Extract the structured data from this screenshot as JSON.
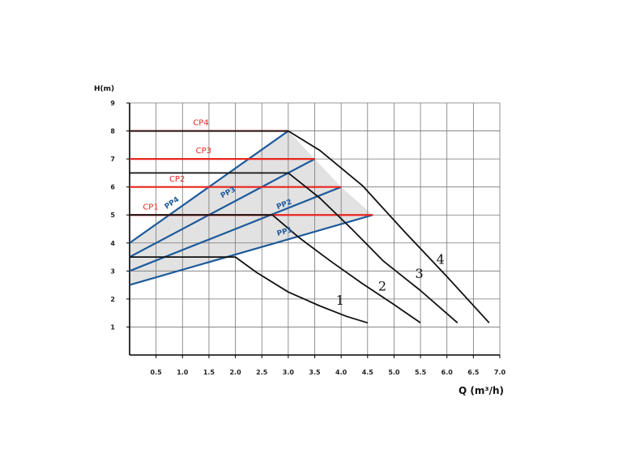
{
  "chart_data": {
    "type": "line",
    "title": "",
    "xlabel": "Q (m³/h)",
    "ylabel": "H(m)",
    "xlim": [
      0,
      7
    ],
    "ylim": [
      0,
      9
    ],
    "grid": true,
    "x_ticks": [
      "0.5",
      "1.0",
      "1.5",
      "2.0",
      "2.5",
      "3.0",
      "3.5",
      "4.0",
      "4.5",
      "5.0",
      "5.5",
      "6.0",
      "6.5",
      "7.0"
    ],
    "y_ticks": [
      "1",
      "2",
      "3",
      "4",
      "5",
      "6",
      "7",
      "8",
      "9"
    ],
    "colors": {
      "cp": "#e8251f",
      "pp": "#1d5a9b",
      "curve": "#111111",
      "fill": "#e2e2e2",
      "grid": "#777777"
    },
    "pump_curves": [
      {
        "name": "1",
        "label_at": [
          3.9,
          1.8
        ],
        "points": [
          [
            0,
            3.5
          ],
          [
            2.0,
            3.5
          ],
          [
            2.4,
            2.95
          ],
          [
            3.0,
            2.25
          ],
          [
            3.6,
            1.75
          ],
          [
            4.1,
            1.38
          ],
          [
            4.5,
            1.15
          ]
        ]
      },
      {
        "name": "2",
        "label_at": [
          4.7,
          2.3
        ],
        "points": [
          [
            0,
            5.0
          ],
          [
            2.7,
            5.0
          ],
          [
            3.2,
            4.2
          ],
          [
            3.8,
            3.35
          ],
          [
            4.4,
            2.55
          ],
          [
            5.0,
            1.8
          ],
          [
            5.5,
            1.15
          ]
        ]
      },
      {
        "name": "3",
        "label_at": [
          5.4,
          2.75
        ],
        "points": [
          [
            0,
            6.5
          ],
          [
            3.0,
            6.5
          ],
          [
            3.6,
            5.6
          ],
          [
            4.2,
            4.5
          ],
          [
            4.8,
            3.35
          ],
          [
            5.5,
            2.3
          ],
          [
            6.2,
            1.15
          ]
        ]
      },
      {
        "name": "4",
        "label_at": [
          5.8,
          3.25
        ],
        "points": [
          [
            0,
            8.0
          ],
          [
            3.0,
            8.0
          ],
          [
            3.6,
            7.3
          ],
          [
            4.4,
            6.05
          ],
          [
            5.2,
            4.4
          ],
          [
            6.0,
            2.8
          ],
          [
            6.8,
            1.15
          ]
        ]
      }
    ],
    "constant_pressure_lines": [
      {
        "name": "CP1",
        "y": 5,
        "x_end": 4.6,
        "label_at": [
          0.25,
          5.2
        ]
      },
      {
        "name": "CP2",
        "y": 6,
        "x_end": 4.0,
        "label_at": [
          0.75,
          6.2
        ]
      },
      {
        "name": "CP3",
        "y": 7,
        "x_end": 3.5,
        "label_at": [
          1.25,
          7.2
        ]
      },
      {
        "name": "CP4",
        "y": 8,
        "x_end": 3.0,
        "label_at": [
          1.2,
          8.2
        ]
      }
    ],
    "proportional_pressure_lines": [
      {
        "name": "PP1",
        "from": [
          0,
          2.5
        ],
        "to": [
          4.6,
          5.0
        ],
        "label_at": [
          2.8,
          4.25
        ]
      },
      {
        "name": "PP2",
        "from": [
          0,
          3.0
        ],
        "to": [
          4.0,
          6.0
        ],
        "label_at": [
          2.8,
          5.2
        ]
      },
      {
        "name": "PP3",
        "from": [
          0,
          3.5
        ],
        "to": [
          3.5,
          7.0
        ],
        "label_at": [
          1.75,
          5.6
        ]
      },
      {
        "name": "PP4",
        "from": [
          0,
          4.0
        ],
        "to": [
          3.0,
          8.0
        ],
        "label_at": [
          0.7,
          5.2
        ]
      }
    ],
    "shaded_region": [
      [
        0,
        4.0
      ],
      [
        3.0,
        8.0
      ],
      [
        3.5,
        7.0
      ],
      [
        4.0,
        6.0
      ],
      [
        4.6,
        5.0
      ],
      [
        0,
        2.5
      ]
    ]
  }
}
